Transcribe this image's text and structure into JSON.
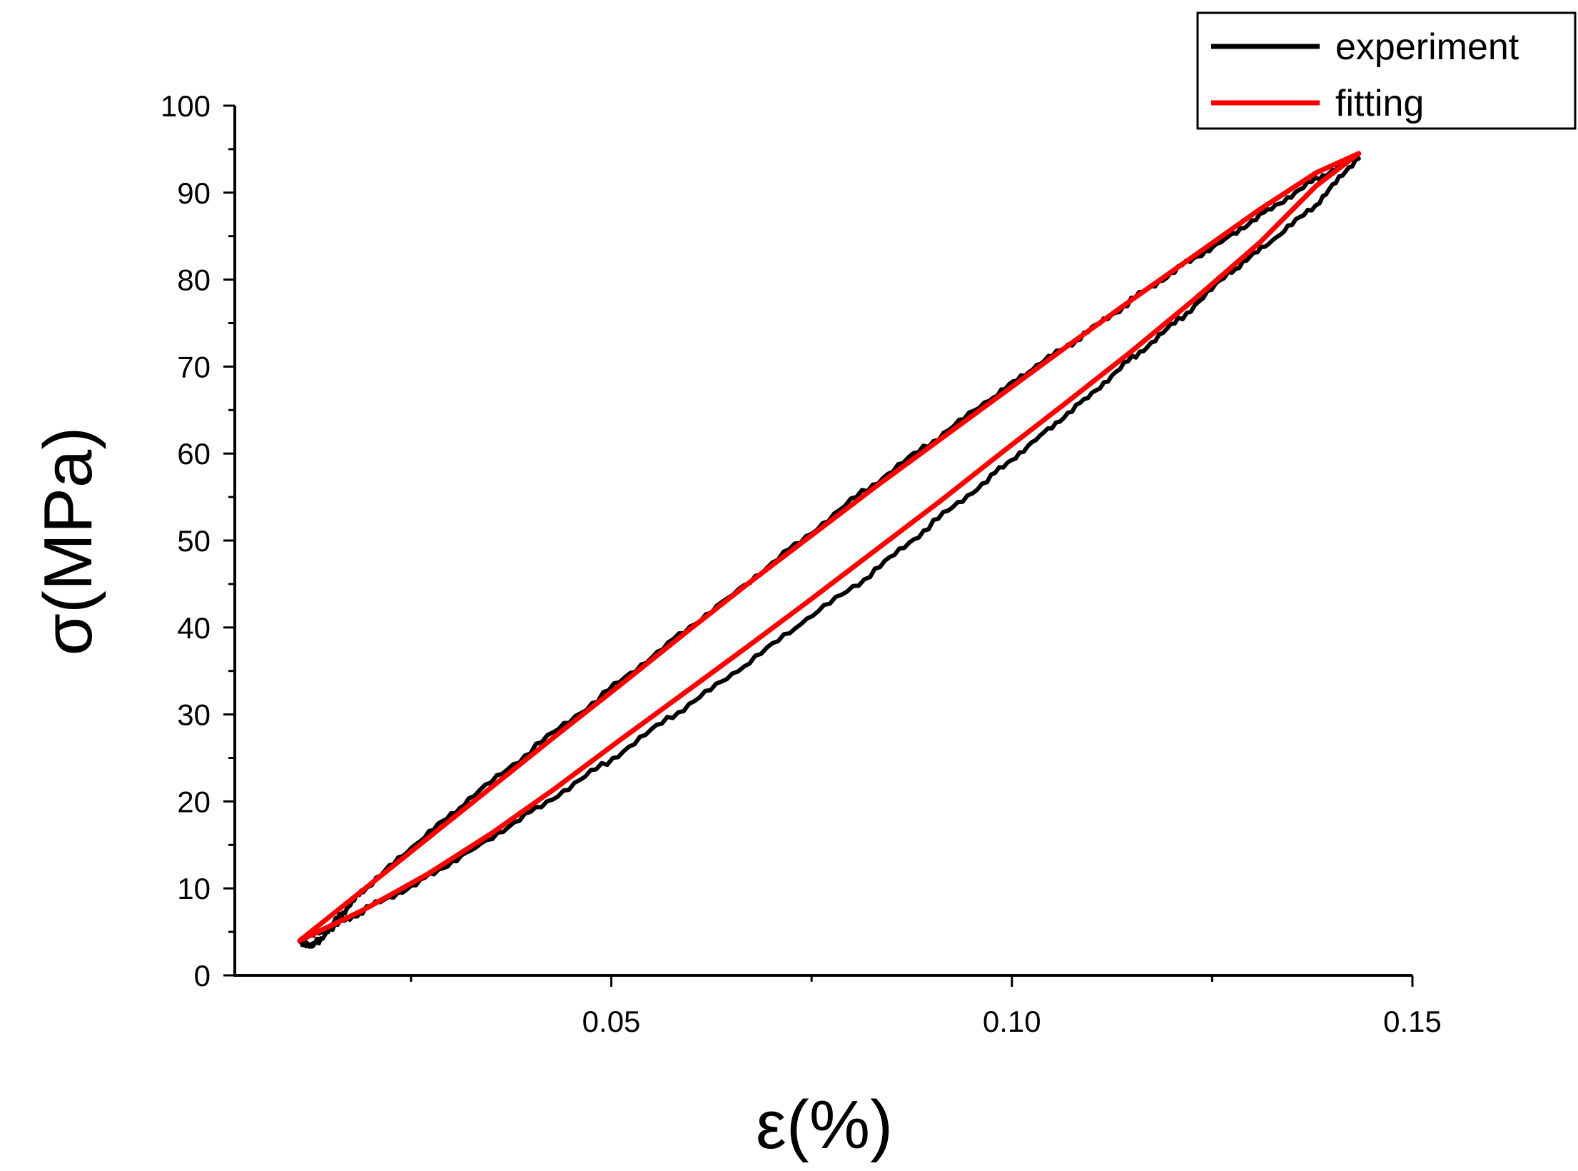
{
  "chart_data": {
    "type": "line",
    "title": "",
    "xlabel": "ε(%)",
    "ylabel": "σ(MPa)",
    "xlim": [
      0.003,
      0.15
    ],
    "ylim": [
      0,
      100
    ],
    "x_ticks": [
      0.05,
      0.1,
      0.15
    ],
    "x_tick_labels": [
      "0.05",
      "0.10",
      "0.15"
    ],
    "y_ticks": [
      0,
      10,
      20,
      30,
      40,
      50,
      60,
      70,
      80,
      90,
      100
    ],
    "y_tick_labels": [
      "0",
      "10",
      "20",
      "30",
      "40",
      "50",
      "60",
      "70",
      "80",
      "90",
      "100"
    ],
    "grid": false,
    "legend_position": "top-right",
    "series": [
      {
        "name": "experiment",
        "color": "#000000",
        "x": [
          0.0111,
          0.0123,
          0.0135,
          0.0163,
          0.019,
          0.0256,
          0.0322,
          0.0406,
          0.049,
          0.0571,
          0.0652,
          0.0736,
          0.082,
          0.0896,
          0.0972,
          0.1031,
          0.109,
          0.1149,
          0.1208,
          0.1266,
          0.1324,
          0.1384,
          0.1433,
          0.1384,
          0.1325,
          0.127,
          0.1208,
          0.115,
          0.109,
          0.103,
          0.0969,
          0.0896,
          0.0823,
          0.0737,
          0.0651,
          0.057,
          0.0488,
          0.0406,
          0.0324,
          0.0256,
          0.0189,
          0.0152,
          0.0111
        ],
        "y": [
          3.9,
          3.5,
          4.0,
          7.0,
          9.7,
          15.0,
          20.1,
          26.3,
          32.3,
          38.2,
          43.9,
          50.0,
          56.0,
          61.0,
          66.1,
          70.0,
          73.6,
          77.6,
          81.4,
          84.7,
          88.3,
          91.8,
          94.2,
          88.9,
          84.4,
          80.6,
          75.3,
          71.0,
          66.2,
          61.7,
          57.0,
          51.6,
          46.0,
          40.4,
          34.5,
          29.4,
          24.1,
          19.2,
          14.4,
          10.6,
          7.4,
          5.5,
          3.9
        ]
      },
      {
        "name": "fitting",
        "color": "#ff0000",
        "x": [
          0.0111,
          0.019,
          0.027,
          0.035,
          0.043,
          0.051,
          0.059,
          0.067,
          0.075,
          0.083,
          0.091,
          0.099,
          0.107,
          0.115,
          0.123,
          0.131,
          0.138,
          0.1433,
          0.138,
          0.131,
          0.123,
          0.115,
          0.107,
          0.099,
          0.091,
          0.083,
          0.075,
          0.067,
          0.059,
          0.051,
          0.043,
          0.035,
          0.027,
          0.019,
          0.0111
        ],
        "y": [
          4.0,
          9.8,
          15.7,
          21.6,
          27.5,
          33.3,
          39.2,
          45.0,
          50.6,
          56.2,
          61.6,
          67.0,
          72.4,
          77.7,
          82.9,
          88.1,
          92.3,
          94.5,
          90.8,
          84.3,
          77.9,
          71.8,
          66.0,
          60.3,
          54.5,
          48.9,
          43.3,
          37.8,
          32.4,
          27.0,
          21.5,
          16.3,
          11.6,
          7.5,
          4.0
        ]
      }
    ]
  }
}
